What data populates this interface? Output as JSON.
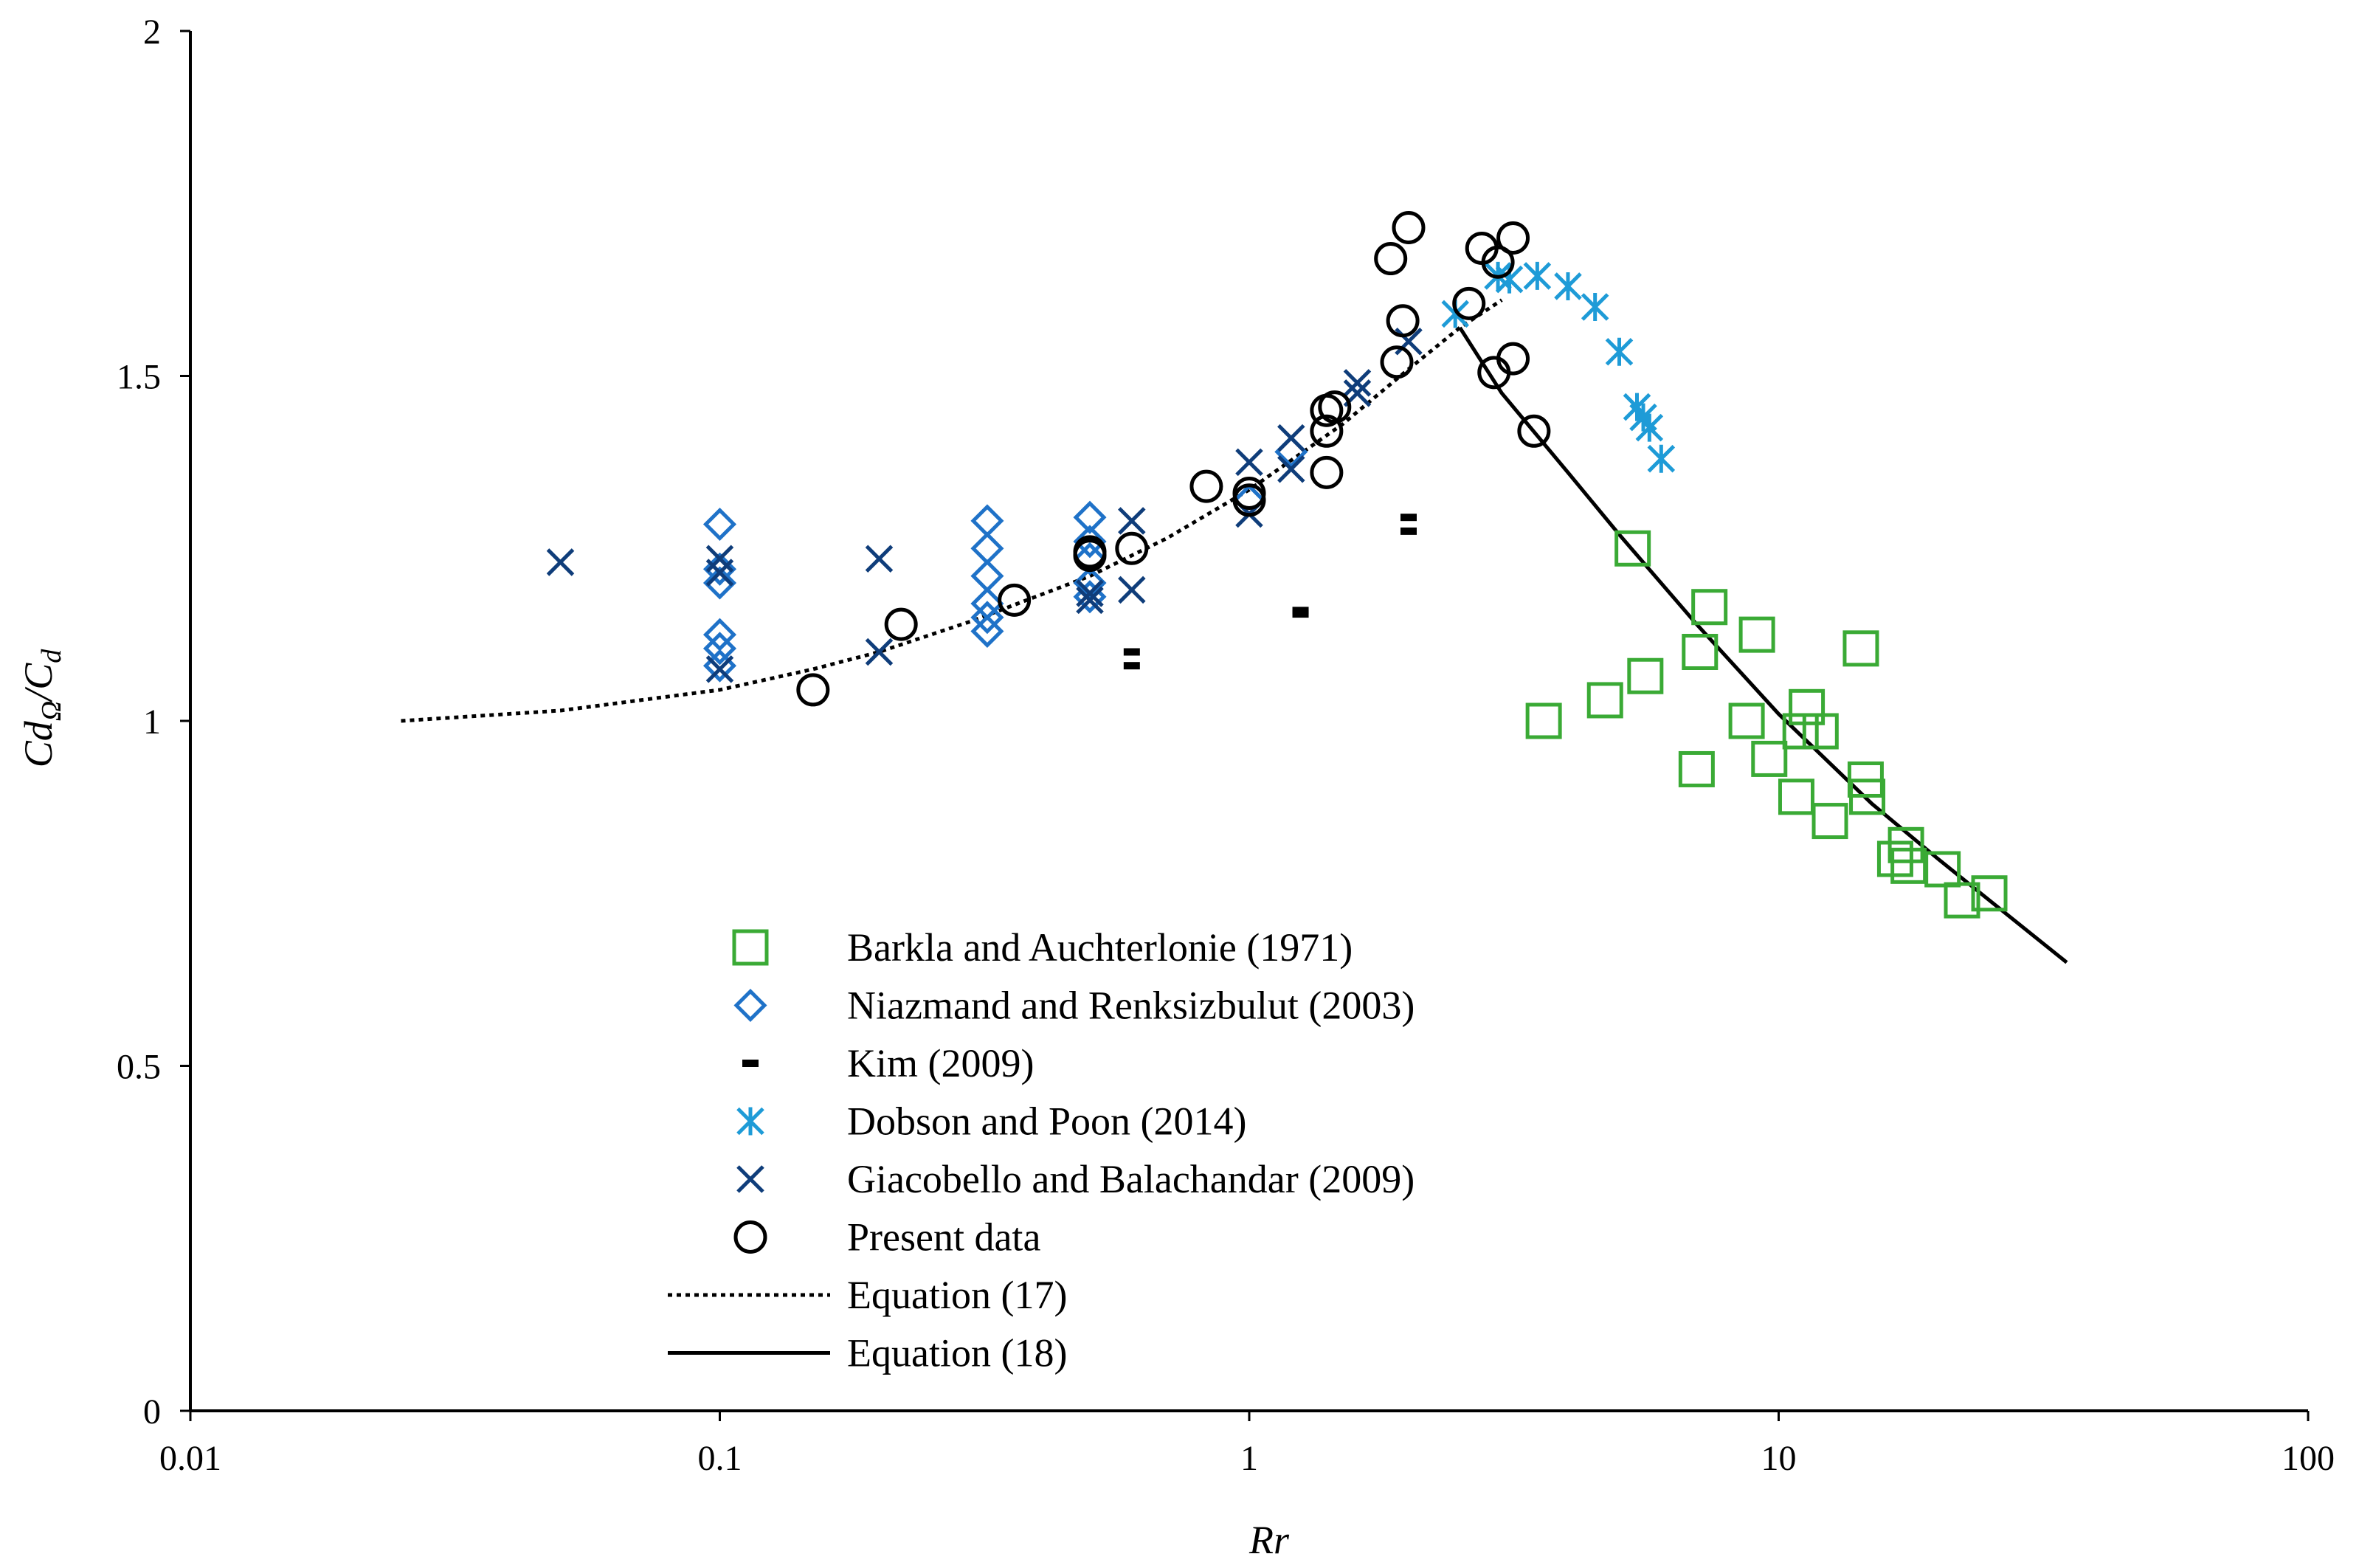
{
  "chart_data": {
    "type": "scatter",
    "title": "",
    "xlabel": "Rr",
    "ylabel": {
      "main": "Cd",
      "sub1": "Ω",
      "slash": "/C",
      "sub2": "d"
    },
    "xscale": "log",
    "xlim": [
      0.01,
      100
    ],
    "ylim": [
      0,
      2
    ],
    "xticks": [
      0.01,
      0.1,
      1,
      10,
      100
    ],
    "xtick_labels": [
      "0.01",
      "0.1",
      "1",
      "10",
      "100"
    ],
    "yticks": [
      0,
      0.5,
      1,
      1.5,
      2
    ],
    "ytick_labels": [
      "0",
      "0.5",
      "1",
      "1.5",
      "2"
    ],
    "grid": false,
    "legend_position": "lower-center",
    "series": [
      {
        "name": "Barkla and Auchterlonie (1971)",
        "marker": "square",
        "color": "#3aaa35",
        "points": [
          [
            3.6,
            1.0
          ],
          [
            4.7,
            1.03
          ],
          [
            5.3,
            1.25
          ],
          [
            5.6,
            1.065
          ],
          [
            7.0,
            0.93
          ],
          [
            7.1,
            1.1
          ],
          [
            7.4,
            1.165
          ],
          [
            8.7,
            1.0
          ],
          [
            9.1,
            1.125
          ],
          [
            9.6,
            0.945
          ],
          [
            10.8,
            0.89
          ],
          [
            11.0,
            0.985
          ],
          [
            11.3,
            1.02
          ],
          [
            12.0,
            0.985
          ],
          [
            12.5,
            0.855
          ],
          [
            14.3,
            1.105
          ],
          [
            14.6,
            0.915
          ],
          [
            14.7,
            0.89
          ],
          [
            16.6,
            0.8
          ],
          [
            17.4,
            0.82
          ],
          [
            17.6,
            0.79
          ],
          [
            20.4,
            0.785
          ],
          [
            22.2,
            0.74
          ],
          [
            25.0,
            0.75
          ]
        ]
      },
      {
        "name": "Niazmand and Renksizbulut (2003)",
        "marker": "diamond",
        "color": "#1f72c8",
        "points": [
          [
            0.1,
            1.285
          ],
          [
            0.1,
            1.22
          ],
          [
            0.1,
            1.2
          ],
          [
            0.1,
            1.125
          ],
          [
            0.1,
            1.105
          ],
          [
            0.1,
            1.08
          ],
          [
            0.32,
            1.29
          ],
          [
            0.32,
            1.25
          ],
          [
            0.32,
            1.21
          ],
          [
            0.32,
            1.17
          ],
          [
            0.32,
            1.15
          ],
          [
            0.32,
            1.13
          ],
          [
            0.5,
            1.295
          ],
          [
            0.5,
            1.26
          ],
          [
            0.5,
            1.235
          ],
          [
            0.5,
            1.2
          ],
          [
            0.5,
            1.18
          ],
          [
            1.0,
            1.32
          ],
          [
            1.2,
            1.39
          ]
        ]
      },
      {
        "name": "Kim (2009)",
        "marker": "dash",
        "color": "#000000",
        "points": [
          [
            0.6,
            1.1
          ],
          [
            0.6,
            1.08
          ],
          [
            1.25,
            1.16
          ],
          [
            1.25,
            1.155
          ],
          [
            2.0,
            1.295
          ],
          [
            2.0,
            1.275
          ]
        ]
      },
      {
        "name": "Dobson and Poon (2014)",
        "marker": "asterisk",
        "color": "#1e9bd7",
        "points": [
          [
            2.45,
            1.59
          ],
          [
            2.95,
            1.645
          ],
          [
            3.1,
            1.64
          ],
          [
            3.5,
            1.645
          ],
          [
            4.0,
            1.63
          ],
          [
            4.5,
            1.6
          ],
          [
            5.0,
            1.535
          ],
          [
            5.4,
            1.455
          ],
          [
            5.55,
            1.44
          ],
          [
            5.7,
            1.425
          ],
          [
            6.0,
            1.38
          ]
        ]
      },
      {
        "name": "Giacobello and Balachandar (2009)",
        "marker": "x",
        "color": "#0f3d7a",
        "points": [
          [
            0.05,
            1.23
          ],
          [
            0.1,
            1.235
          ],
          [
            0.1,
            1.215
          ],
          [
            0.1,
            1.075
          ],
          [
            0.2,
            1.235
          ],
          [
            0.2,
            1.1
          ],
          [
            0.5,
            1.175
          ],
          [
            0.5,
            1.185
          ],
          [
            0.6,
            1.29
          ],
          [
            0.6,
            1.19
          ],
          [
            1.0,
            1.375
          ],
          [
            1.0,
            1.3
          ],
          [
            1.2,
            1.41
          ],
          [
            1.2,
            1.365
          ],
          [
            1.6,
            1.475
          ],
          [
            1.6,
            1.49
          ],
          [
            2.0,
            1.55
          ]
        ]
      },
      {
        "name": "Present data",
        "marker": "circle",
        "color": "#000000",
        "points": [
          [
            0.15,
            1.045
          ],
          [
            0.22,
            1.14
          ],
          [
            0.36,
            1.175
          ],
          [
            0.5,
            1.245
          ],
          [
            0.5,
            1.24
          ],
          [
            0.6,
            1.25
          ],
          [
            0.83,
            1.34
          ],
          [
            1.0,
            1.33
          ],
          [
            1.0,
            1.32
          ],
          [
            1.4,
            1.45
          ],
          [
            1.4,
            1.42
          ],
          [
            1.4,
            1.36
          ],
          [
            1.45,
            1.455
          ],
          [
            1.85,
            1.67
          ],
          [
            1.9,
            1.52
          ],
          [
            1.95,
            1.58
          ],
          [
            2.0,
            1.715
          ],
          [
            2.6,
            1.605
          ],
          [
            2.75,
            1.685
          ],
          [
            2.9,
            1.505
          ],
          [
            2.95,
            1.665
          ],
          [
            3.15,
            1.7
          ],
          [
            3.15,
            1.525
          ],
          [
            3.45,
            1.42
          ]
        ]
      }
    ],
    "curves": [
      {
        "name": "Equation (17)",
        "style": "dotted",
        "color": "#000000",
        "points": [
          [
            0.025,
            1.0
          ],
          [
            0.05,
            1.015
          ],
          [
            0.1,
            1.045
          ],
          [
            0.15,
            1.075
          ],
          [
            0.2,
            1.1
          ],
          [
            0.3,
            1.145
          ],
          [
            0.5,
            1.21
          ],
          [
            0.7,
            1.265
          ],
          [
            1.0,
            1.335
          ],
          [
            1.5,
            1.43
          ],
          [
            2.0,
            1.51
          ],
          [
            2.5,
            1.57
          ],
          [
            3.0,
            1.61
          ]
        ]
      },
      {
        "name": "Equation (18)",
        "style": "solid",
        "color": "#000000",
        "points": [
          [
            2.5,
            1.57
          ],
          [
            3.0,
            1.475
          ],
          [
            4.0,
            1.36
          ],
          [
            5.0,
            1.27
          ],
          [
            7.0,
            1.14
          ],
          [
            10.0,
            1.01
          ],
          [
            15.0,
            0.88
          ],
          [
            20.0,
            0.8
          ],
          [
            25.0,
            0.74
          ],
          [
            35.0,
            0.65
          ]
        ]
      }
    ]
  }
}
